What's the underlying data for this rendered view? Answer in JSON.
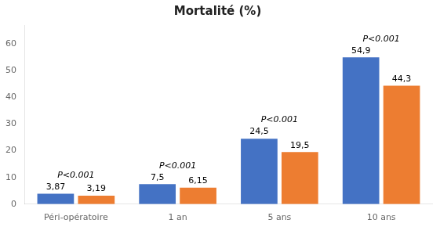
{
  "chart_data": {
    "type": "bar",
    "title": "Mortalité (%)",
    "categories": [
      "Péri-opératoire",
      "1 an",
      "5 ans",
      "10 ans"
    ],
    "series": [
      {
        "color": "#4472C4",
        "values": [
          3.87,
          7.5,
          24.5,
          54.9
        ],
        "value_labels": [
          "3,87",
          "7,5",
          "24,5",
          "54,9"
        ]
      },
      {
        "color": "#ED7D31",
        "values": [
          3.19,
          6.15,
          19.5,
          44.3
        ],
        "value_labels": [
          "3,19",
          "6,15",
          "19,5",
          "44,3"
        ]
      }
    ],
    "annotations": [
      {
        "text": "P<0.001",
        "category": "Péri-opératoire"
      },
      {
        "text": "P<0.001",
        "category": "1 an"
      },
      {
        "text": "P<0.001",
        "category": "5 ans"
      },
      {
        "text": "P<0.001",
        "category": "10 ans"
      }
    ],
    "ylim": [
      0,
      67
    ],
    "yticks": [
      0,
      10,
      20,
      30,
      40,
      50,
      60
    ],
    "grid": false,
    "data_labels": true
  }
}
